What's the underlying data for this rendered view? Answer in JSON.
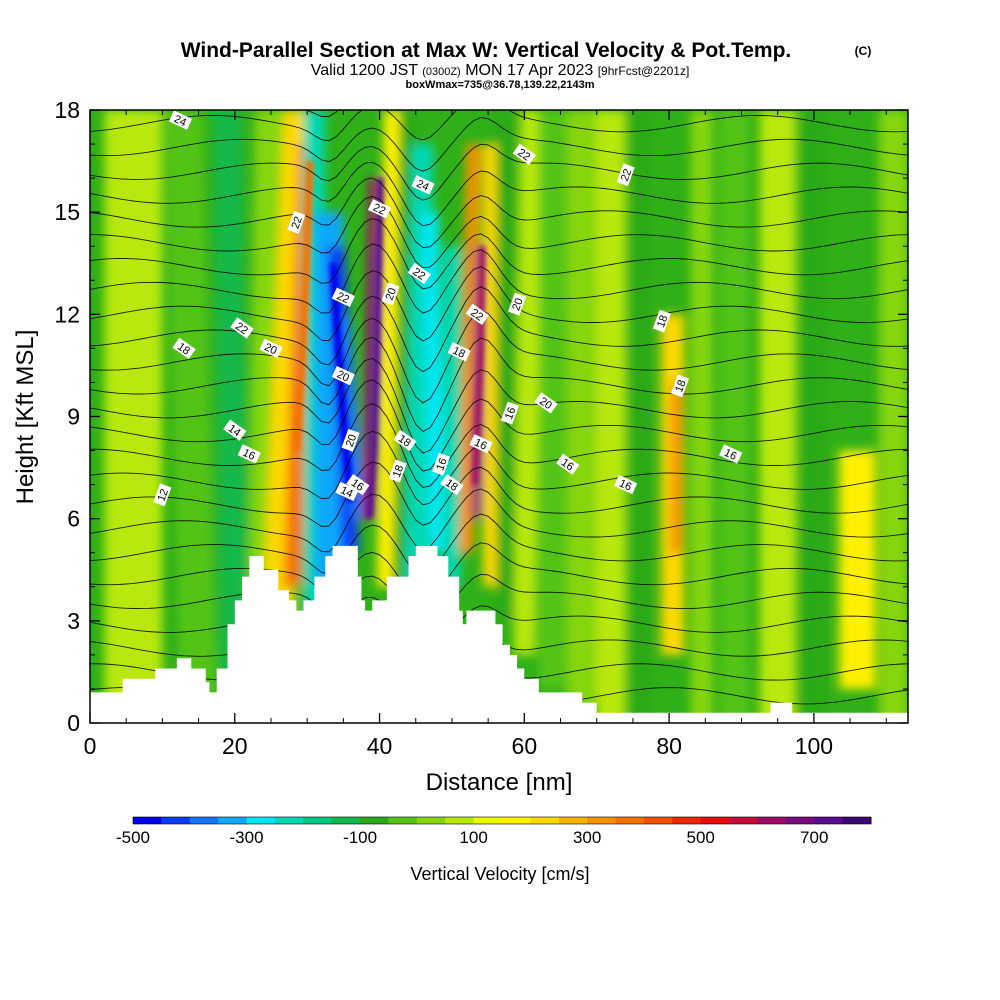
{
  "header": {
    "title": "Wind-Parallel Section at Max W: Vertical Velocity & Pot.Temp.",
    "copyright": "(C)",
    "valid_prefix": "Valid 1200 JST",
    "valid_zulu": "(0300Z)",
    "valid_date": "MON 17 Apr 2023",
    "forecast": "[9hrFcst@2201z]",
    "box_info": "boxWmax=735@36.78,139.22,2143m"
  },
  "chart_data": {
    "type": "heatmap",
    "title": "Wind-Parallel Section at Max W: Vertical Velocity & Pot.Temp.",
    "xlabel": "Distance [nm]",
    "ylabel": "Height [Kft MSL]",
    "xlim": [
      0,
      113
    ],
    "ylim": [
      0,
      18
    ],
    "xticks": [
      "0",
      "20",
      "40",
      "60",
      "80",
      "100"
    ],
    "yticks": [
      "0",
      "3",
      "6",
      "9",
      "12",
      "15",
      "18"
    ],
    "colorbar": {
      "label": "Vertical Velocity [cm/s]",
      "ticks": [
        "-500",
        "-300",
        "-100",
        "100",
        "300",
        "500",
        "700"
      ],
      "range": [
        -500,
        800
      ],
      "colors": [
        "#0000ee",
        "#0a3cf8",
        "#1474fa",
        "#10a8fa",
        "#00e6f2",
        "#00d8b4",
        "#00c882",
        "#12b84a",
        "#2aaa18",
        "#52c414",
        "#86d60e",
        "#b8e808",
        "#ecf800",
        "#fff000",
        "#fdd800",
        "#f8b400",
        "#f69200",
        "#f47200",
        "#f05000",
        "#ec2800",
        "#e80c0c",
        "#c80c3a",
        "#a00a64",
        "#7a0a80",
        "#5a0a90",
        "#3a0870"
      ]
    },
    "velocity_features": [
      {
        "x": 34,
        "y": 12,
        "w": -400
      },
      {
        "x": 39,
        "y": 11,
        "w": 735
      },
      {
        "x": 48,
        "y": 10,
        "w": -260
      },
      {
        "x": 54,
        "y": 11,
        "w": 650
      },
      {
        "x": 29,
        "y": 13,
        "w": 320
      },
      {
        "x": 81,
        "y": 8,
        "w": 300
      },
      {
        "x": 106,
        "y": 5,
        "w": 180
      }
    ],
    "terrain_kft": [
      [
        0,
        0.9
      ],
      [
        4.5,
        0.9
      ],
      [
        4.5,
        1.3
      ],
      [
        9,
        1.3
      ],
      [
        9,
        1.6
      ],
      [
        12,
        1.6
      ],
      [
        12,
        1.9
      ],
      [
        14,
        1.9
      ],
      [
        14,
        1.6
      ],
      [
        16,
        1.6
      ],
      [
        16,
        1.2
      ],
      [
        16.5,
        1.2
      ],
      [
        16.5,
        0.9
      ],
      [
        17.5,
        0.9
      ],
      [
        17.5,
        1.6
      ],
      [
        19,
        1.6
      ],
      [
        19,
        2.9
      ],
      [
        20,
        2.9
      ],
      [
        20,
        3.6
      ],
      [
        21,
        3.6
      ],
      [
        21,
        4.3
      ],
      [
        22,
        4.3
      ],
      [
        22,
        4.9
      ],
      [
        24,
        4.9
      ],
      [
        24,
        4.5
      ],
      [
        26,
        4.5
      ],
      [
        26,
        3.9
      ],
      [
        27.5,
        3.9
      ],
      [
        27.5,
        3.6
      ],
      [
        28.5,
        3.6
      ],
      [
        28.5,
        3.3
      ],
      [
        29.5,
        3.3
      ],
      [
        29.5,
        3.6
      ],
      [
        31,
        3.6
      ],
      [
        31,
        4.3
      ],
      [
        32.5,
        4.3
      ],
      [
        32.5,
        4.9
      ],
      [
        33.5,
        4.9
      ],
      [
        33.5,
        5.2
      ],
      [
        37,
        5.2
      ],
      [
        37,
        4.3
      ],
      [
        37.5,
        4.3
      ],
      [
        37.5,
        3.6
      ],
      [
        38,
        3.6
      ],
      [
        38,
        3.3
      ],
      [
        39,
        3.3
      ],
      [
        39,
        3.6
      ],
      [
        41,
        3.6
      ],
      [
        41,
        4.3
      ],
      [
        44,
        4.3
      ],
      [
        44,
        4.9
      ],
      [
        45,
        4.9
      ],
      [
        45,
        5.2
      ],
      [
        48,
        5.2
      ],
      [
        48,
        4.9
      ],
      [
        49.5,
        4.9
      ],
      [
        49.5,
        4.3
      ],
      [
        51,
        4.3
      ],
      [
        51,
        3.3
      ],
      [
        51.5,
        3.3
      ],
      [
        51.5,
        2.9
      ],
      [
        52,
        2.9
      ],
      [
        52,
        3.3
      ],
      [
        56,
        3.3
      ],
      [
        56,
        2.9
      ],
      [
        57,
        2.9
      ],
      [
        57,
        2.3
      ],
      [
        58,
        2.3
      ],
      [
        58,
        2.0
      ],
      [
        59,
        2.0
      ],
      [
        59,
        1.6
      ],
      [
        60,
        1.6
      ],
      [
        60,
        1.3
      ],
      [
        62,
        1.3
      ],
      [
        62,
        0.9
      ],
      [
        68,
        0.9
      ],
      [
        68,
        0.6
      ],
      [
        70,
        0.6
      ],
      [
        70,
        0.3
      ],
      [
        94,
        0.3
      ],
      [
        94,
        0.6
      ],
      [
        97,
        0.6
      ],
      [
        97,
        0.3
      ],
      [
        113,
        0.3
      ],
      [
        113,
        0
      ]
    ],
    "theta_label_values": [
      "24",
      "22",
      "22",
      "24",
      "22",
      "22",
      "22",
      "20",
      "22",
      "22",
      "20",
      "22",
      "20",
      "18",
      "18",
      "20",
      "18",
      "20",
      "18",
      "16",
      "14",
      "16",
      "20",
      "18",
      "16",
      "16",
      "18",
      "14",
      "18",
      "16",
      "16",
      "12",
      "16",
      "16"
    ]
  }
}
